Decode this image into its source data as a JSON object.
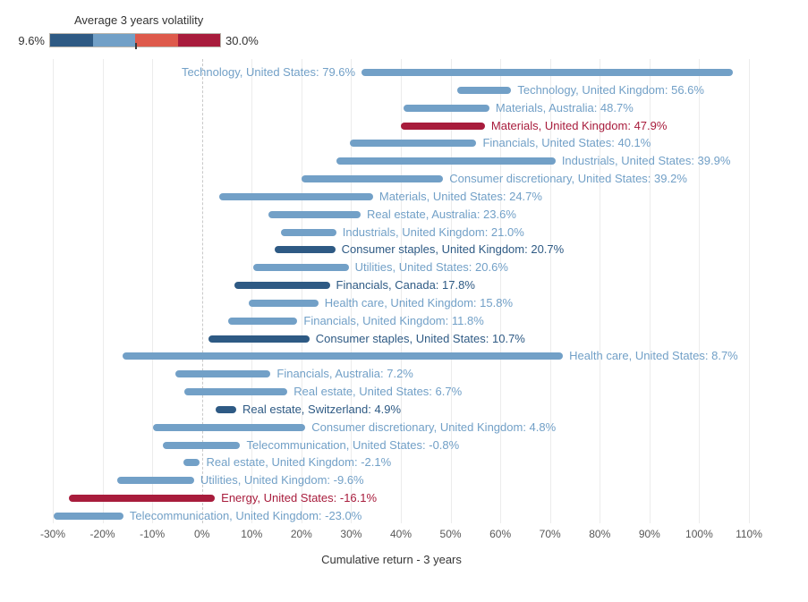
{
  "legend": {
    "title": "Average 3 years volatility",
    "min_label": "9.6%",
    "max_label": "30.0%",
    "segment_colors": [
      "#2e5a84",
      "#72a0c7",
      "#de5a4b",
      "#a81c3c"
    ]
  },
  "colors": {
    "blue": "#72a0c7",
    "navy": "#2e5a84",
    "red": "#a81c3c",
    "gridline": "#ececec",
    "zero_line": "#c9c9c9"
  },
  "chart_data": {
    "type": "bar",
    "subtype": "horizontal-range-bars",
    "title": "",
    "xlabel": "Cumulative return - 3 years",
    "color_metric": {
      "label": "Average 3 years volatility",
      "min": 9.6,
      "max": 30.0
    },
    "xlim": [
      -33,
      115
    ],
    "grid": true,
    "x_ticks": [
      {
        "value": -30,
        "label": "-30%"
      },
      {
        "value": -20,
        "label": "-20%"
      },
      {
        "value": -10,
        "label": "-10%"
      },
      {
        "value": 0,
        "label": "0%"
      },
      {
        "value": 10,
        "label": "10%"
      },
      {
        "value": 20,
        "label": "20%"
      },
      {
        "value": 30,
        "label": "30%"
      },
      {
        "value": 40,
        "label": "40%"
      },
      {
        "value": 50,
        "label": "50%"
      },
      {
        "value": 60,
        "label": "60%"
      },
      {
        "value": 70,
        "label": "70%"
      },
      {
        "value": 80,
        "label": "80%"
      },
      {
        "value": 90,
        "label": "90%"
      },
      {
        "value": 100,
        "label": "100%"
      },
      {
        "value": 110,
        "label": "110%"
      }
    ],
    "rows": [
      {
        "label": "Technology, United States: 79.6%",
        "value": 79.6,
        "bar_start": 32.1,
        "bar_end": 106.8,
        "color": "blue",
        "label_side": "left"
      },
      {
        "label": "Technology, United Kingdom: 56.6%",
        "value": 56.6,
        "bar_start": 51.4,
        "bar_end": 62.2,
        "color": "blue",
        "label_side": "right"
      },
      {
        "label": "Materials, Australia: 48.7%",
        "value": 48.7,
        "bar_start": 40.5,
        "bar_end": 57.8,
        "color": "blue",
        "label_side": "right"
      },
      {
        "label": "Materials, United Kingdom: 47.9%",
        "value": 47.9,
        "bar_start": 40.0,
        "bar_end": 56.9,
        "color": "red",
        "label_side": "right"
      },
      {
        "label": "Financials, United States: 40.1%",
        "value": 40.1,
        "bar_start": 29.8,
        "bar_end": 55.2,
        "color": "blue",
        "label_side": "right"
      },
      {
        "label": "Industrials, United States: 39.9%",
        "value": 39.9,
        "bar_start": 27.1,
        "bar_end": 71.1,
        "color": "blue",
        "label_side": "right"
      },
      {
        "label": "Consumer discretionary, United States: 39.2%",
        "value": 39.2,
        "bar_start": 20.0,
        "bar_end": 48.5,
        "color": "blue",
        "label_side": "right"
      },
      {
        "label": "Materials, United States: 24.7%",
        "value": 24.7,
        "bar_start": 3.4,
        "bar_end": 34.4,
        "color": "blue",
        "label_side": "right"
      },
      {
        "label": "Real estate, Australia: 23.6%",
        "value": 23.6,
        "bar_start": 13.3,
        "bar_end": 31.9,
        "color": "blue",
        "label_side": "right"
      },
      {
        "label": "Industrials, United Kingdom: 21.0%",
        "value": 21.0,
        "bar_start": 15.9,
        "bar_end": 27.0,
        "color": "blue",
        "label_side": "right"
      },
      {
        "label": "Consumer staples, United Kingdom: 20.7%",
        "value": 20.7,
        "bar_start": 14.6,
        "bar_end": 26.8,
        "color": "navy",
        "label_side": "right"
      },
      {
        "label": "Utilities, United States: 20.6%",
        "value": 20.6,
        "bar_start": 10.3,
        "bar_end": 29.5,
        "color": "blue",
        "label_side": "right"
      },
      {
        "label": "Financials, Canada: 17.8%",
        "value": 17.8,
        "bar_start": 6.5,
        "bar_end": 25.7,
        "color": "navy",
        "label_side": "right"
      },
      {
        "label": "Health care, United Kingdom: 15.8%",
        "value": 15.8,
        "bar_start": 9.4,
        "bar_end": 23.4,
        "color": "blue",
        "label_side": "right"
      },
      {
        "label": "Financials, United Kingdom: 11.8%",
        "value": 11.8,
        "bar_start": 5.2,
        "bar_end": 19.2,
        "color": "blue",
        "label_side": "right"
      },
      {
        "label": "Consumer staples, United States: 10.7%",
        "value": 10.7,
        "bar_start": 1.3,
        "bar_end": 21.6,
        "color": "navy",
        "label_side": "right"
      },
      {
        "label": "Health care, United States: 8.7%",
        "value": 8.7,
        "bar_start": -16.0,
        "bar_end": 72.6,
        "color": "blue",
        "label_side": "right"
      },
      {
        "label": "Financials, Australia: 7.2%",
        "value": 7.2,
        "bar_start": -5.4,
        "bar_end": 13.8,
        "color": "blue",
        "label_side": "right"
      },
      {
        "label": "Real estate, United States: 6.7%",
        "value": 6.7,
        "bar_start": -3.6,
        "bar_end": 17.2,
        "color": "blue",
        "label_side": "right"
      },
      {
        "label": "Real estate, Switzerland: 4.9%",
        "value": 4.9,
        "bar_start": 2.7,
        "bar_end": 6.9,
        "color": "navy",
        "label_side": "right"
      },
      {
        "label": "Consumer discretionary, United Kingdom: 4.8%",
        "value": 4.8,
        "bar_start": -9.8,
        "bar_end": 20.8,
        "color": "blue",
        "label_side": "right"
      },
      {
        "label": "Telecommunication, United States: -0.8%",
        "value": -0.8,
        "bar_start": -7.9,
        "bar_end": 7.7,
        "color": "blue",
        "label_side": "right"
      },
      {
        "label": "Real estate, United Kingdom: -2.1%",
        "value": -2.1,
        "bar_start": -3.8,
        "bar_end": -0.4,
        "color": "blue",
        "label_side": "right"
      },
      {
        "label": "Utilities, United Kingdom: -9.6%",
        "value": -9.6,
        "bar_start": -17.1,
        "bar_end": -1.6,
        "color": "blue",
        "label_side": "right"
      },
      {
        "label": "Energy, United States: -16.1%",
        "value": -16.1,
        "bar_start": -26.8,
        "bar_end": 2.6,
        "color": "red",
        "label_side": "right"
      },
      {
        "label": "Telecommunication, United Kingdom: -23.0%",
        "value": -23.0,
        "bar_start": -29.8,
        "bar_end": -15.8,
        "color": "blue",
        "label_side": "right"
      }
    ]
  }
}
